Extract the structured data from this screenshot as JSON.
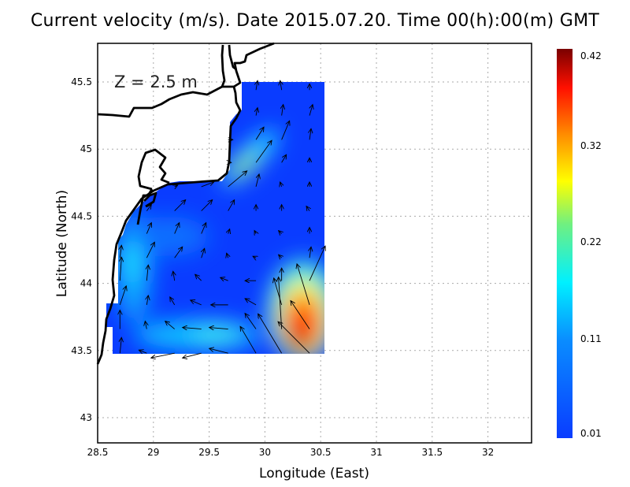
{
  "title": "Current velocity (m/s). Date 2015.07.20. Time 00(h):00(m) GMT",
  "chart_data": {
    "type": "vector-field",
    "title": "Current velocity (m/s). Date 2015.07.20. Time 00(h):00(m) GMT",
    "annotation": "Z = 2.5 m",
    "xlabel": "Longitude (East)",
    "ylabel": "Latitude (North)",
    "xlim": [
      28.5,
      32.4
    ],
    "ylim": [
      42.8,
      45.8
    ],
    "xticks": [
      "28.5",
      "29",
      "29.5",
      "30",
      "30.5",
      "31",
      "31.5",
      "32"
    ],
    "yticks": [
      "43",
      "43.5",
      "44",
      "44.5",
      "45",
      "45.5"
    ],
    "grid": true,
    "colorbar": {
      "min": 0.01,
      "max": 0.42,
      "labels": [
        "0.42",
        "0.32",
        "0.22",
        "0.11",
        "0.01"
      ],
      "colormap": "jet"
    },
    "vectors_columns": [
      "lon",
      "lat",
      "u",
      "v"
    ],
    "vectors": [
      [
        29.92,
        45.44,
        0.01,
        0.06
      ],
      [
        30.15,
        45.44,
        -0.01,
        0.06
      ],
      [
        30.4,
        45.44,
        0,
        0.04
      ],
      [
        29.92,
        45.25,
        0.01,
        0.05
      ],
      [
        30.15,
        45.25,
        0.01,
        0.07
      ],
      [
        30.4,
        45.25,
        0.02,
        0.07
      ],
      [
        29.67,
        45.07,
        0.03,
        0
      ],
      [
        29.92,
        45.07,
        0.05,
        0.08
      ],
      [
        30.15,
        45.07,
        0.05,
        0.12
      ],
      [
        30.4,
        45.07,
        0.01,
        0.07
      ],
      [
        29.67,
        44.9,
        0.02,
        0
      ],
      [
        29.92,
        44.9,
        0.1,
        0.14
      ],
      [
        30.15,
        44.9,
        0.03,
        0.05
      ],
      [
        30.4,
        44.9,
        0,
        0.03
      ],
      [
        29.19,
        44.72,
        0.02,
        0.01
      ],
      [
        29.43,
        44.72,
        0.08,
        0.03
      ],
      [
        29.67,
        44.72,
        0.12,
        0.1
      ],
      [
        29.92,
        44.72,
        0.02,
        0.08
      ],
      [
        30.15,
        44.72,
        -0.01,
        0.03
      ],
      [
        30.4,
        44.72,
        0,
        0.03
      ],
      [
        28.94,
        44.54,
        0.03,
        0.04
      ],
      [
        29.19,
        44.54,
        0.07,
        0.07
      ],
      [
        29.43,
        44.54,
        0.07,
        0.07
      ],
      [
        29.67,
        44.54,
        0.04,
        0.07
      ],
      [
        29.92,
        44.54,
        0,
        0.04
      ],
      [
        30.15,
        44.54,
        0,
        0.04
      ],
      [
        30.4,
        44.54,
        -0.02,
        0.03
      ],
      [
        28.94,
        44.37,
        0.03,
        0.07
      ],
      [
        29.19,
        44.37,
        0.03,
        0.07
      ],
      [
        29.43,
        44.37,
        0.03,
        0.07
      ],
      [
        29.67,
        44.37,
        0.01,
        0.03
      ],
      [
        29.92,
        44.37,
        -0.01,
        0.02
      ],
      [
        30.15,
        44.37,
        -0.02,
        0.02
      ],
      [
        30.4,
        44.37,
        0,
        0.04
      ],
      [
        28.7,
        44.19,
        0.01,
        0.08
      ],
      [
        28.94,
        44.19,
        0.05,
        0.1
      ],
      [
        29.19,
        44.19,
        0.05,
        0.07
      ],
      [
        29.43,
        44.19,
        0.02,
        0.06
      ],
      [
        29.67,
        44.19,
        -0.01,
        0.03
      ],
      [
        29.92,
        44.19,
        -0.02,
        0.01
      ],
      [
        30.15,
        44.19,
        -0.02,
        0.02
      ],
      [
        30.4,
        44.19,
        0.01,
        0.07
      ],
      [
        28.7,
        44.02,
        0.01,
        0.15
      ],
      [
        28.94,
        44.02,
        0.01,
        0.1
      ],
      [
        29.19,
        44.02,
        -0.01,
        0.06
      ],
      [
        29.43,
        44.02,
        -0.04,
        0.04
      ],
      [
        29.67,
        44.02,
        -0.05,
        0.02
      ],
      [
        29.92,
        44.02,
        -0.07,
        0
      ],
      [
        30.15,
        44.02,
        0,
        0.08
      ],
      [
        30.4,
        44.02,
        0.1,
        0.22
      ],
      [
        28.7,
        43.84,
        0.04,
        0.12
      ],
      [
        28.94,
        43.84,
        0.01,
        0.06
      ],
      [
        29.19,
        43.84,
        -0.03,
        0.05
      ],
      [
        29.43,
        43.84,
        -0.07,
        0.03
      ],
      [
        29.67,
        43.84,
        -0.11,
        0
      ],
      [
        29.92,
        43.84,
        -0.07,
        0.04
      ],
      [
        30.15,
        43.84,
        -0.05,
        0.17
      ],
      [
        30.4,
        43.84,
        -0.08,
        0.26
      ],
      [
        28.7,
        43.66,
        0,
        0.12
      ],
      [
        28.94,
        43.66,
        -0.01,
        0.05
      ],
      [
        29.19,
        43.66,
        -0.06,
        0.05
      ],
      [
        29.43,
        43.66,
        -0.12,
        0.01
      ],
      [
        29.67,
        43.66,
        -0.12,
        0.01
      ],
      [
        29.92,
        43.66,
        -0.07,
        0.1
      ],
      [
        30.15,
        43.66,
        -0.02,
        0.33
      ],
      [
        30.4,
        43.66,
        -0.12,
        0.18
      ],
      [
        28.7,
        43.48,
        0.01,
        0.1
      ],
      [
        28.94,
        43.48,
        -0.05,
        0.02
      ],
      [
        29.19,
        43.48,
        -0.15,
        -0.03
      ],
      [
        29.43,
        43.48,
        -0.12,
        -0.03
      ],
      [
        29.67,
        43.48,
        -0.12,
        0.03
      ],
      [
        29.92,
        43.48,
        -0.1,
        0.17
      ],
      [
        30.15,
        43.48,
        -0.15,
        0.25
      ],
      [
        30.4,
        43.48,
        -0.2,
        0.2
      ]
    ]
  }
}
